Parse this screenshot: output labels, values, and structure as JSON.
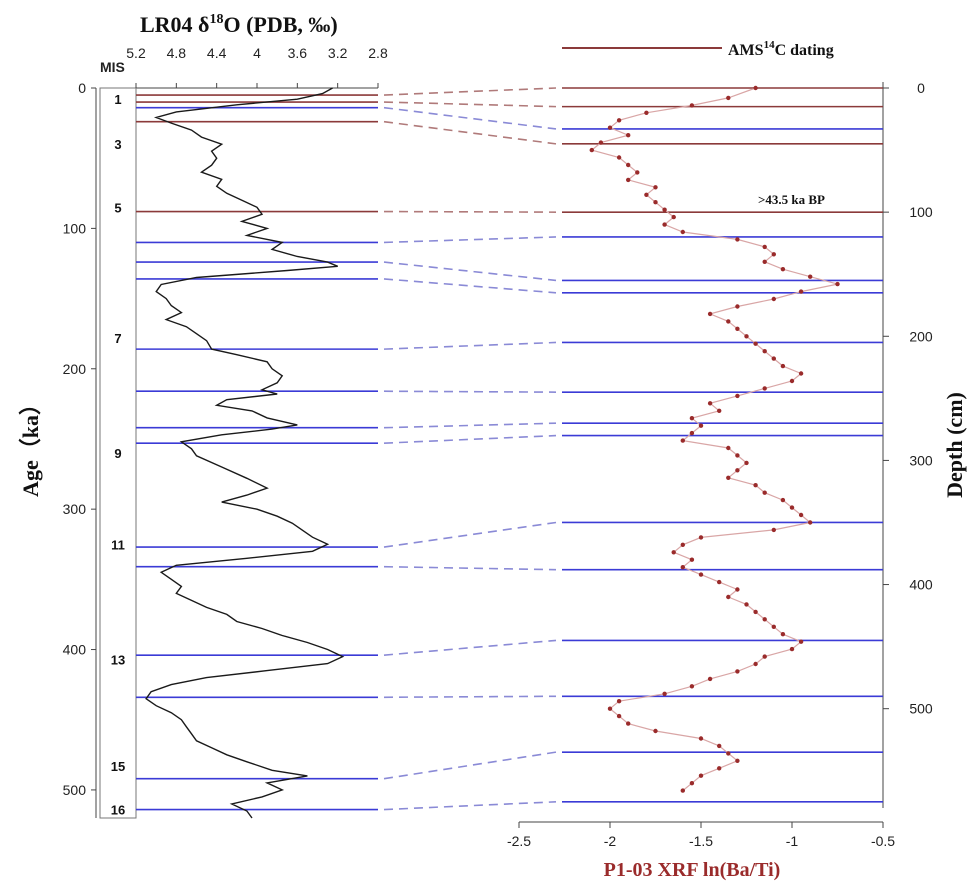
{
  "chart_data": [
    {
      "type": "line",
      "title": "LR04 δ18O (PDB, ‰)",
      "title_parts": {
        "prefix": "LR04 δ",
        "superscript": "18",
        "suffix": "O (PDB, ‰)"
      },
      "ylabel": "Age（ka）",
      "x_axis_position": "top",
      "x_reversed": true,
      "xlim": [
        5.2,
        2.8
      ],
      "ylim": [
        0,
        520
      ],
      "y_reversed": true,
      "xticks": [
        "5.2",
        "4.8",
        "4.4",
        "4",
        "3.6",
        "3.2",
        "2.8"
      ],
      "yticks": [
        "0",
        "100",
        "200",
        "300",
        "400",
        "500"
      ],
      "mis_header": "MIS",
      "mis_labels": [
        {
          "label": "1",
          "age": 8
        },
        {
          "label": "3",
          "age": 40
        },
        {
          "label": "5",
          "age": 85
        },
        {
          "label": "7",
          "age": 178
        },
        {
          "label": "9",
          "age": 260
        },
        {
          "label": "11",
          "age": 325
        },
        {
          "label": "13",
          "age": 407
        },
        {
          "label": "15",
          "age": 483
        },
        {
          "label": "16",
          "age": 514
        }
      ],
      "series": [
        {
          "color": "#1a1a1a",
          "points": [
            [
              0,
              3.25
            ],
            [
              4,
              3.35
            ],
            [
              8,
              3.6
            ],
            [
              12,
              4.2
            ],
            [
              17,
              4.8
            ],
            [
              21,
              5.0
            ],
            [
              25,
              4.85
            ],
            [
              30,
              4.65
            ],
            [
              35,
              4.55
            ],
            [
              40,
              4.35
            ],
            [
              45,
              4.45
            ],
            [
              50,
              4.4
            ],
            [
              55,
              4.45
            ],
            [
              60,
              4.55
            ],
            [
              65,
              4.35
            ],
            [
              70,
              4.4
            ],
            [
              75,
              4.3
            ],
            [
              80,
              4.15
            ],
            [
              85,
              4.0
            ],
            [
              90,
              3.95
            ],
            [
              95,
              4.15
            ],
            [
              100,
              3.9
            ],
            [
              105,
              4.1
            ],
            [
              110,
              3.75
            ],
            [
              115,
              3.85
            ],
            [
              120,
              3.6
            ],
            [
              124,
              3.3
            ],
            [
              127,
              3.2
            ],
            [
              130,
              3.7
            ],
            [
              135,
              4.6
            ],
            [
              140,
              4.95
            ],
            [
              145,
              5.0
            ],
            [
              150,
              4.9
            ],
            [
              155,
              4.85
            ],
            [
              160,
              4.75
            ],
            [
              165,
              4.9
            ],
            [
              170,
              4.7
            ],
            [
              175,
              4.6
            ],
            [
              180,
              4.5
            ],
            [
              186,
              4.45
            ],
            [
              190,
              4.2
            ],
            [
              195,
              3.9
            ],
            [
              200,
              3.85
            ],
            [
              205,
              3.75
            ],
            [
              210,
              3.8
            ],
            [
              215,
              3.95
            ],
            [
              218,
              3.8
            ],
            [
              222,
              4.3
            ],
            [
              226,
              4.4
            ],
            [
              230,
              4.05
            ],
            [
              235,
              3.9
            ],
            [
              240,
              3.6
            ],
            [
              243,
              3.85
            ],
            [
              247,
              4.35
            ],
            [
              252,
              4.75
            ],
            [
              257,
              4.65
            ],
            [
              262,
              4.6
            ],
            [
              270,
              4.35
            ],
            [
              278,
              4.1
            ],
            [
              285,
              3.9
            ],
            [
              290,
              4.1
            ],
            [
              295,
              4.35
            ],
            [
              300,
              4.0
            ],
            [
              305,
              3.8
            ],
            [
              310,
              3.65
            ],
            [
              315,
              3.55
            ],
            [
              320,
              3.45
            ],
            [
              325,
              3.3
            ],
            [
              330,
              3.45
            ],
            [
              335,
              4.1
            ],
            [
              340,
              4.8
            ],
            [
              345,
              4.95
            ],
            [
              350,
              4.85
            ],
            [
              355,
              4.75
            ],
            [
              360,
              4.8
            ],
            [
              365,
              4.65
            ],
            [
              370,
              4.5
            ],
            [
              375,
              4.3
            ],
            [
              380,
              4.2
            ],
            [
              385,
              3.95
            ],
            [
              390,
              3.75
            ],
            [
              395,
              3.5
            ],
            [
              400,
              3.3
            ],
            [
              405,
              3.15
            ],
            [
              410,
              3.3
            ],
            [
              415,
              3.9
            ],
            [
              420,
              4.5
            ],
            [
              425,
              4.85
            ],
            [
              430,
              5.05
            ],
            [
              435,
              5.1
            ],
            [
              440,
              5.0
            ],
            [
              445,
              4.85
            ],
            [
              450,
              4.75
            ],
            [
              455,
              4.7
            ],
            [
              460,
              4.65
            ],
            [
              465,
              4.6
            ],
            [
              470,
              4.45
            ],
            [
              475,
              4.3
            ],
            [
              480,
              4.1
            ],
            [
              486,
              3.85
            ],
            [
              490,
              3.5
            ],
            [
              495,
              3.9
            ],
            [
              500,
              3.75
            ],
            [
              505,
              3.95
            ],
            [
              510,
              4.25
            ],
            [
              515,
              4.1
            ],
            [
              520,
              4.05
            ]
          ]
        }
      ]
    },
    {
      "type": "scatter",
      "title": "",
      "xlabel": "P1-03 XRF ln(Ba/Ti)",
      "ylabel": "Depth (cm)",
      "xlim": [
        -2.5,
        -0.5
      ],
      "ylim": [
        0,
        580
      ],
      "y_reversed": true,
      "xticks": [
        "-2.5",
        "-2",
        "-1.5",
        "-1",
        "-0.5"
      ],
      "yticks": [
        "0",
        "100",
        "200",
        "300",
        "400",
        "500"
      ],
      "series": [
        {
          "color": "#9a2b2b",
          "line_color": "#d9a6a6",
          "points": [
            [
              0,
              -1.2
            ],
            [
              8,
              -1.35
            ],
            [
              14,
              -1.55
            ],
            [
              20,
              -1.8
            ],
            [
              26,
              -1.95
            ],
            [
              32,
              -2.0
            ],
            [
              38,
              -1.9
            ],
            [
              44,
              -2.05
            ],
            [
              50,
              -2.1
            ],
            [
              56,
              -1.95
            ],
            [
              62,
              -1.9
            ],
            [
              68,
              -1.85
            ],
            [
              74,
              -1.9
            ],
            [
              80,
              -1.75
            ],
            [
              86,
              -1.8
            ],
            [
              92,
              -1.75
            ],
            [
              98,
              -1.7
            ],
            [
              104,
              -1.65
            ],
            [
              110,
              -1.7
            ],
            [
              116,
              -1.6
            ],
            [
              122,
              -1.3
            ],
            [
              128,
              -1.15
            ],
            [
              134,
              -1.1
            ],
            [
              140,
              -1.15
            ],
            [
              146,
              -1.05
            ],
            [
              152,
              -0.9
            ],
            [
              158,
              -0.75
            ],
            [
              164,
              -0.95
            ],
            [
              170,
              -1.1
            ],
            [
              176,
              -1.3
            ],
            [
              182,
              -1.45
            ],
            [
              188,
              -1.35
            ],
            [
              194,
              -1.3
            ],
            [
              200,
              -1.25
            ],
            [
              206,
              -1.2
            ],
            [
              212,
              -1.15
            ],
            [
              218,
              -1.1
            ],
            [
              224,
              -1.05
            ],
            [
              230,
              -0.95
            ],
            [
              236,
              -1.0
            ],
            [
              242,
              -1.15
            ],
            [
              248,
              -1.3
            ],
            [
              254,
              -1.45
            ],
            [
              260,
              -1.4
            ],
            [
              266,
              -1.55
            ],
            [
              272,
              -1.5
            ],
            [
              278,
              -1.55
            ],
            [
              284,
              -1.6
            ],
            [
              290,
              -1.35
            ],
            [
              296,
              -1.3
            ],
            [
              302,
              -1.25
            ],
            [
              308,
              -1.3
            ],
            [
              314,
              -1.35
            ],
            [
              320,
              -1.2
            ],
            [
              326,
              -1.15
            ],
            [
              332,
              -1.05
            ],
            [
              338,
              -1.0
            ],
            [
              344,
              -0.95
            ],
            [
              350,
              -0.9
            ],
            [
              356,
              -1.1
            ],
            [
              362,
              -1.5
            ],
            [
              368,
              -1.6
            ],
            [
              374,
              -1.65
            ],
            [
              380,
              -1.55
            ],
            [
              386,
              -1.6
            ],
            [
              392,
              -1.5
            ],
            [
              398,
              -1.4
            ],
            [
              404,
              -1.3
            ],
            [
              410,
              -1.35
            ],
            [
              416,
              -1.25
            ],
            [
              422,
              -1.2
            ],
            [
              428,
              -1.15
            ],
            [
              434,
              -1.1
            ],
            [
              440,
              -1.05
            ],
            [
              446,
              -0.95
            ],
            [
              452,
              -1.0
            ],
            [
              458,
              -1.15
            ],
            [
              464,
              -1.2
            ],
            [
              470,
              -1.3
            ],
            [
              476,
              -1.45
            ],
            [
              482,
              -1.55
            ],
            [
              488,
              -1.7
            ],
            [
              494,
              -1.95
            ],
            [
              500,
              -2.0
            ],
            [
              506,
              -1.95
            ],
            [
              512,
              -1.9
            ],
            [
              518,
              -1.75
            ],
            [
              524,
              -1.5
            ],
            [
              530,
              -1.4
            ],
            [
              536,
              -1.35
            ],
            [
              542,
              -1.3
            ],
            [
              548,
              -1.4
            ],
            [
              554,
              -1.5
            ],
            [
              560,
              -1.55
            ],
            [
              566,
              -1.6
            ]
          ]
        }
      ]
    }
  ],
  "legend": {
    "line_color": "#8b3a3a",
    "label_prefix": "AMS",
    "label_superscript": "14",
    "label_suffix": "C dating"
  },
  "annotation": ">43.5 ka BP",
  "tie_lines": {
    "ams_color": "#8b3a3a",
    "mis_color": "#3b3bd6",
    "dash_color_ams": "#b07a7a",
    "dash_color_mis": "#8a8ad6",
    "pairs": [
      {
        "age": 5,
        "depth": 0,
        "kind": "ams"
      },
      {
        "age": 10,
        "depth": 15,
        "kind": "ams"
      },
      {
        "age": 14,
        "depth": 33,
        "kind": "mis"
      },
      {
        "age": 24,
        "depth": 45,
        "kind": "ams"
      },
      {
        "age": 88,
        "depth": 100,
        "kind": "ams"
      },
      {
        "age": 110,
        "depth": 120,
        "kind": "mis"
      },
      {
        "age": 124,
        "depth": 155,
        "kind": "mis"
      },
      {
        "age": 136,
        "depth": 165,
        "kind": "mis"
      },
      {
        "age": 186,
        "depth": 205,
        "kind": "mis"
      },
      {
        "age": 216,
        "depth": 245,
        "kind": "mis"
      },
      {
        "age": 242,
        "depth": 270,
        "kind": "mis"
      },
      {
        "age": 253,
        "depth": 280,
        "kind": "mis"
      },
      {
        "age": 327,
        "depth": 350,
        "kind": "mis"
      },
      {
        "age": 341,
        "depth": 388,
        "kind": "mis"
      },
      {
        "age": 404,
        "depth": 445,
        "kind": "mis"
      },
      {
        "age": 434,
        "depth": 490,
        "kind": "mis"
      },
      {
        "age": 492,
        "depth": 535,
        "kind": "mis"
      },
      {
        "age": 514,
        "depth": 575,
        "kind": "mis"
      }
    ]
  }
}
